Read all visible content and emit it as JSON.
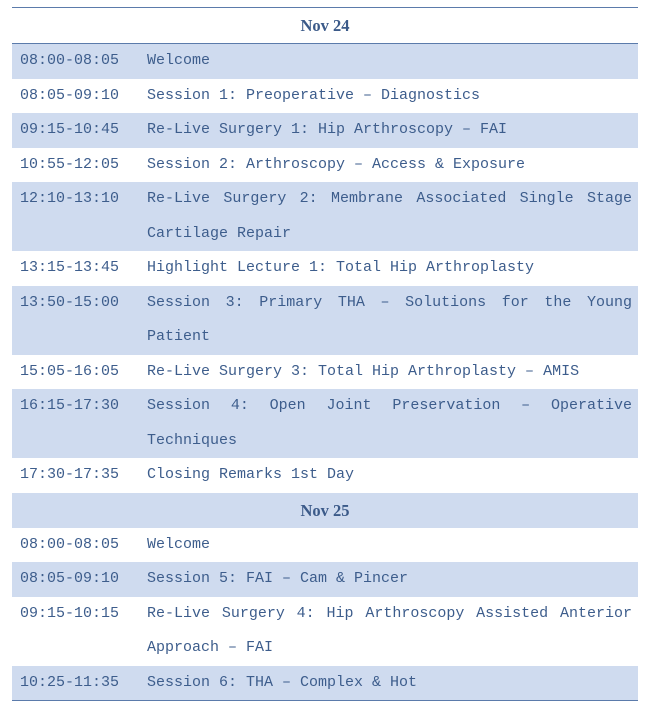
{
  "colors": {
    "band": "#cfdbef",
    "text": "#3d5d8c",
    "rule": "#5b7bab"
  },
  "schedule": [
    {
      "date": "Nov 24",
      "sessions": [
        {
          "time": "08:00-08:05",
          "title": "Welcome"
        },
        {
          "time": "08:05-09:10",
          "title": "Session 1: Preoperative – Diagnostics"
        },
        {
          "time": "09:15-10:45",
          "title": "Re-Live Surgery 1: Hip Arthroscopy – FAI"
        },
        {
          "time": "10:55-12:05",
          "title": "Session 2: Arthroscopy – Access & Exposure"
        },
        {
          "time": "12:10-13:10",
          "title": "Re-Live Surgery 2: Membrane Associated Single Stage Cartilage Repair"
        },
        {
          "time": "13:15-13:45",
          "title": "Highlight Lecture 1: Total Hip Arthroplasty"
        },
        {
          "time": "13:50-15:00",
          "title": "Session 3: Primary THA – Solutions for the Young Patient"
        },
        {
          "time": "15:05-16:05",
          "title": "Re-Live Surgery 3: Total Hip Arthroplasty – AMIS"
        },
        {
          "time": "16:15-17:30",
          "title": "Session 4: Open Joint Preservation – Operative Techniques"
        },
        {
          "time": "17:30-17:35",
          "title": "Closing Remarks 1st Day"
        }
      ]
    },
    {
      "date": "Nov 25",
      "sessions": [
        {
          "time": "08:00-08:05",
          "title": "Welcome"
        },
        {
          "time": "08:05-09:10",
          "title": "Session 5: FAI – Cam & Pincer"
        },
        {
          "time": "09:15-10:15",
          "title": "Re-Live Surgery 4: Hip Arthroscopy Assisted Anterior Approach – FAI"
        },
        {
          "time": "10:25-11:35",
          "title": "Session 6: THA – Complex & Hot"
        }
      ]
    }
  ]
}
